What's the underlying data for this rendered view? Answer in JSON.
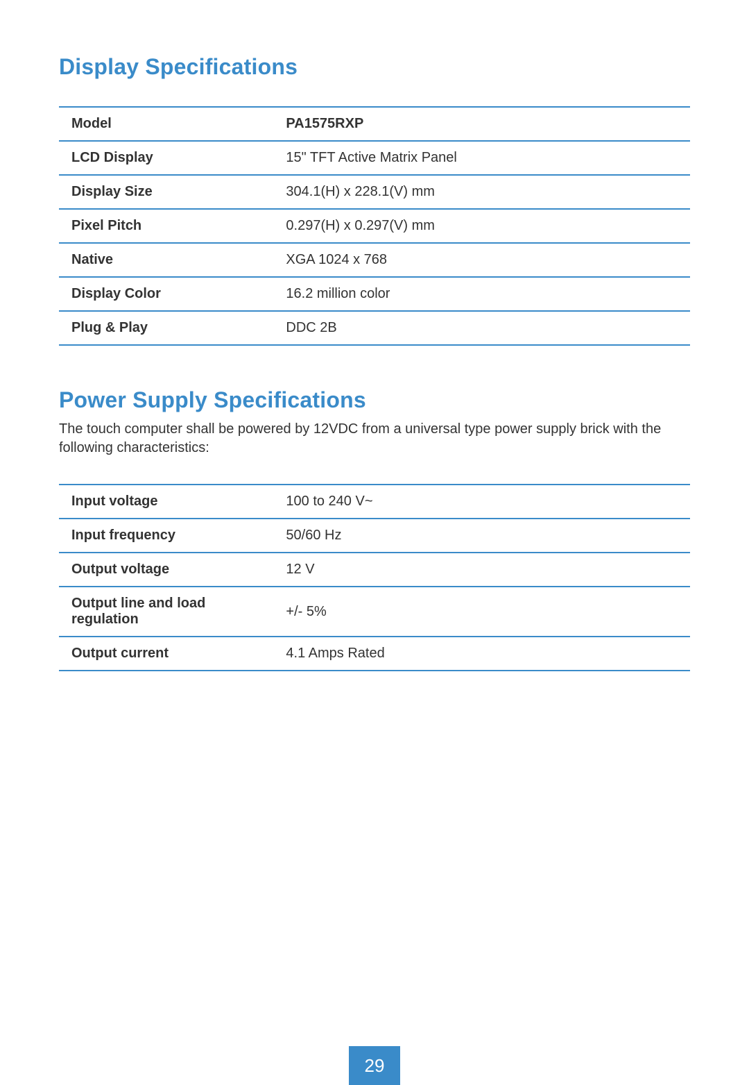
{
  "colors": {
    "accent": "#3a8bc9",
    "border": "#3a8bc9",
    "text": "#333333",
    "page_badge_bg": "#3a8bc9",
    "page_badge_fg": "#ffffff"
  },
  "section1": {
    "title": "Display Specifications",
    "rows": [
      {
        "label": "Model",
        "value": "PA1575RXP",
        "value_bold": true
      },
      {
        "label": "LCD Display",
        "value": "15\" TFT Active Matrix Panel",
        "value_bold": false
      },
      {
        "label": "Display Size",
        "value": "304.1(H) x 228.1(V) mm",
        "value_bold": false
      },
      {
        "label": "Pixel Pitch",
        "value": "0.297(H) x 0.297(V) mm",
        "value_bold": false
      },
      {
        "label": "Native",
        "value": "XGA 1024 x 768",
        "value_bold": false
      },
      {
        "label": "Display Color",
        "value": "16.2 million color",
        "value_bold": false
      },
      {
        "label": "Plug & Play",
        "value": "DDC 2B",
        "value_bold": false
      }
    ]
  },
  "section2": {
    "title": "Power Supply Specifications",
    "intro": "The touch computer shall be powered by 12VDC from a universal type power supply brick with the following characteristics:",
    "rows": [
      {
        "label": "Input voltage",
        "value": "100 to 240 V~",
        "value_bold": false
      },
      {
        "label": "Input frequency",
        "value": "50/60 Hz",
        "value_bold": false
      },
      {
        "label": "Output voltage",
        "value": "12 V",
        "value_bold": false
      },
      {
        "label": "Output line and load regulation",
        "value": "+/- 5%",
        "value_bold": false
      },
      {
        "label": "Output current",
        "value": "4.1 Amps Rated",
        "value_bold": false
      }
    ]
  },
  "page_number": "29"
}
